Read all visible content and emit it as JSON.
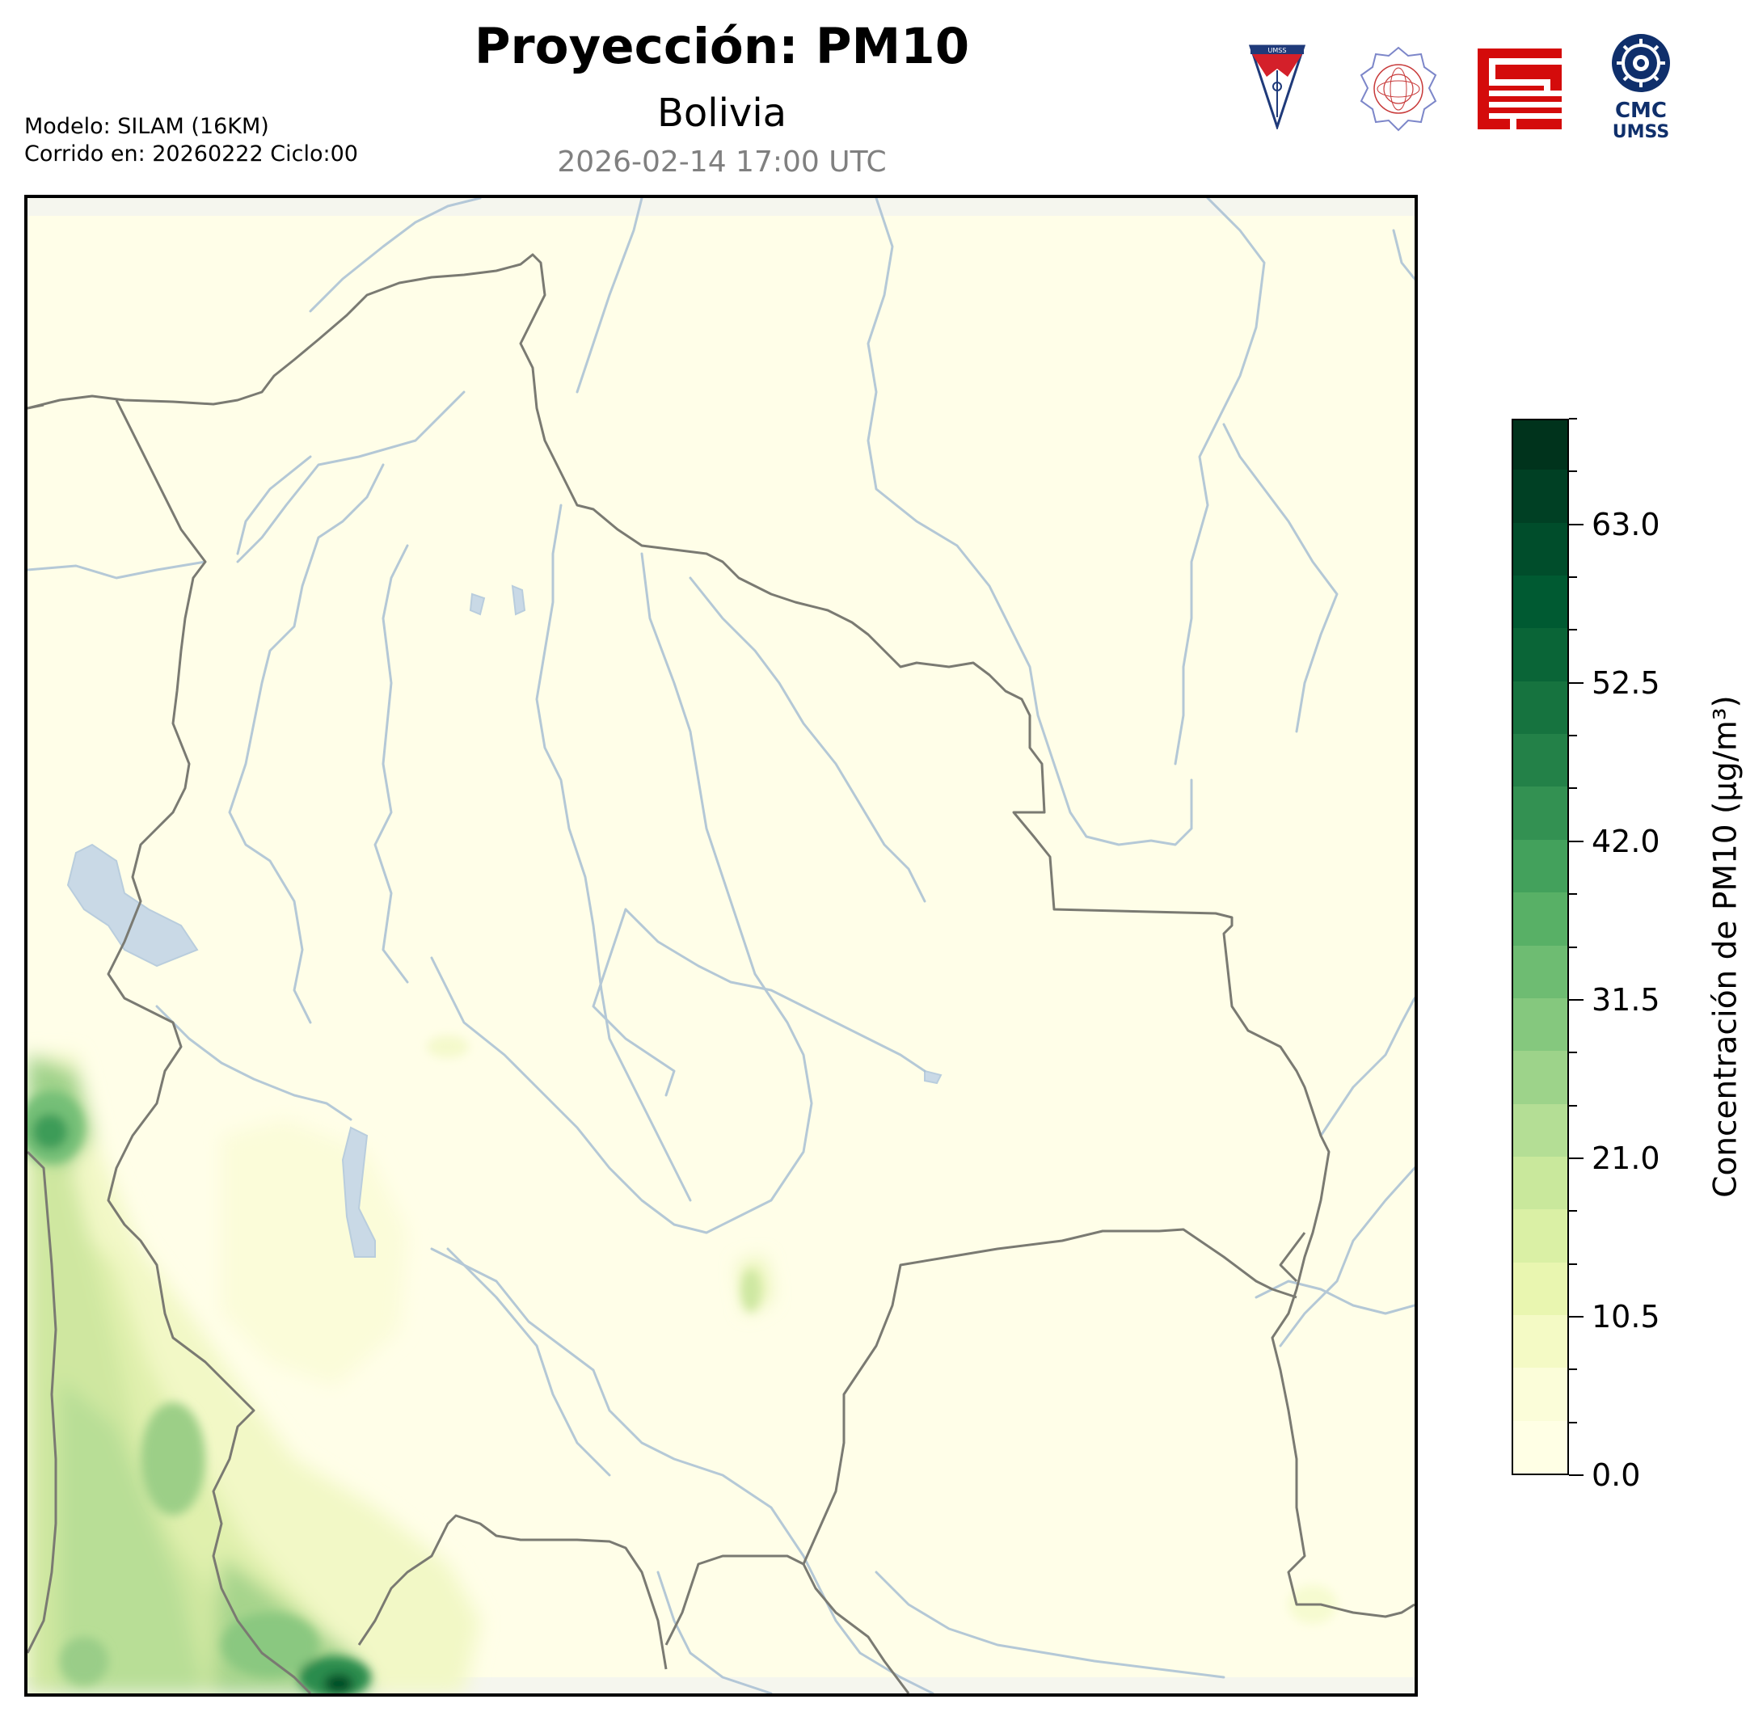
{
  "header": {
    "title": "Proyección: PM10",
    "subtitle": "Bolivia",
    "timestamp": "2026-02-14 17:00 UTC",
    "model_line": "Modelo: SILAM (16KM)",
    "run_line": "Corrido en: 20260222 Ciclo:00"
  },
  "logos": {
    "umss_text": "UMSS",
    "cmc_line1": "CMC",
    "cmc_line2": "UMSS"
  },
  "map": {
    "region": "Bolivia",
    "variable": "PM10",
    "colors": {
      "background": "#fffee8",
      "rivers": "#a8bfd4",
      "borders": "#7a7a72",
      "lakes": "#c9d9e6"
    }
  },
  "colorbar": {
    "label": "Concentración de PM10 (µg/m³)",
    "min": 0.0,
    "max": 70.0,
    "ticks": [
      "0.0",
      "10.5",
      "21.0",
      "31.5",
      "42.0",
      "52.5",
      "63.0"
    ],
    "tick_values": [
      0.0,
      10.5,
      21.0,
      31.5,
      42.0,
      52.5,
      63.0
    ],
    "colors": [
      "#ffffe5",
      "#fbfdd9",
      "#f4fac5",
      "#e9f6b0",
      "#daf0a5",
      "#c9e89c",
      "#b4de95",
      "#9dd38a",
      "#85c87e",
      "#6ebc72",
      "#58b066",
      "#43a15c",
      "#339152",
      "#238148",
      "#16733f",
      "#0a6537",
      "#005a32",
      "#004d2b",
      "#004024",
      "#00331c"
    ]
  }
}
